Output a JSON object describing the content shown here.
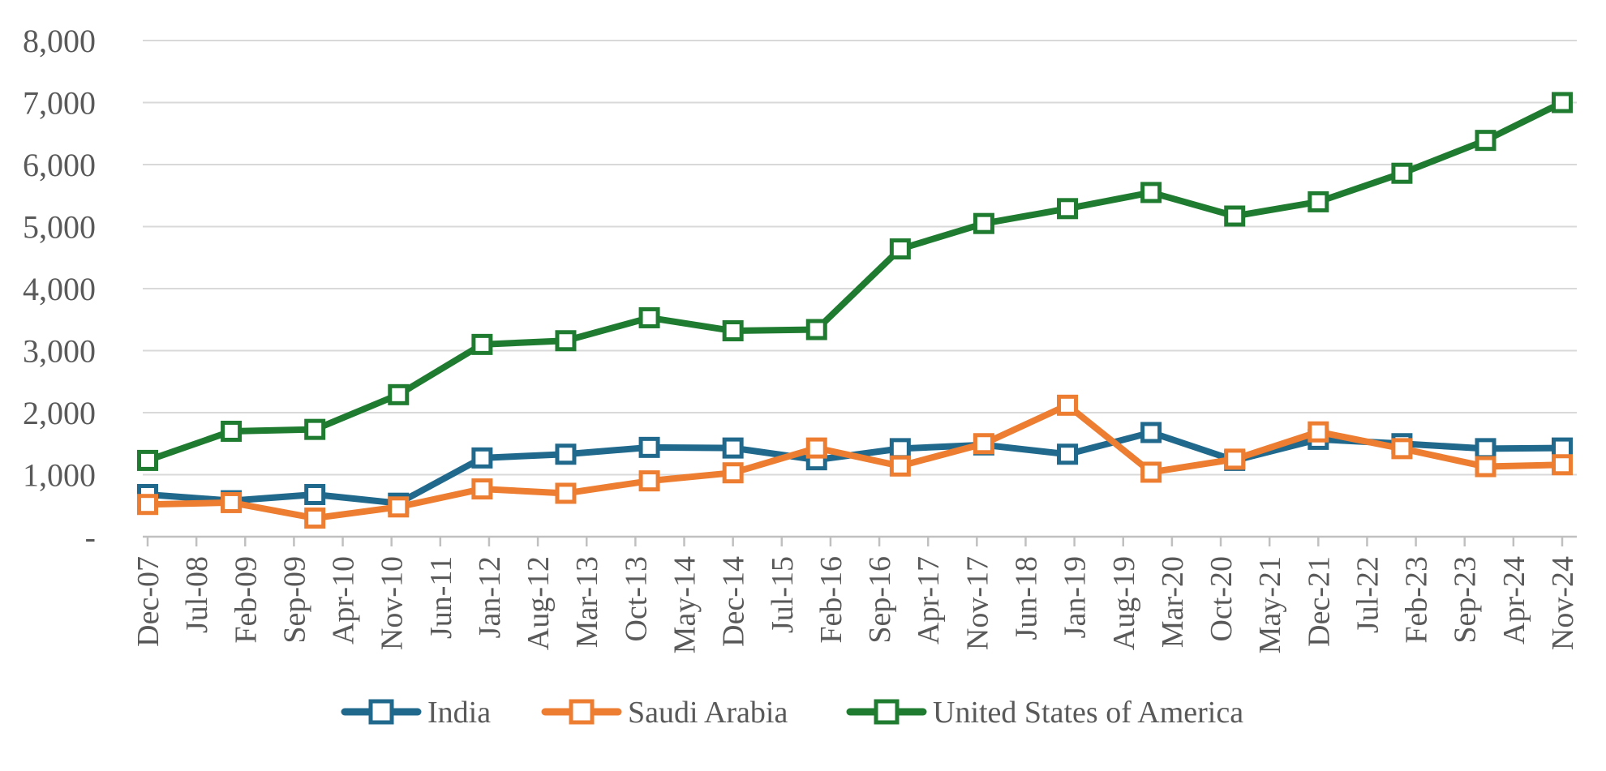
{
  "chart_data": {
    "type": "line",
    "title": "",
    "grid": true,
    "legend_position": "bottom",
    "y_axis": {
      "min": 0,
      "max": 8000,
      "step": 1000,
      "tick_labels": [
        "-",
        "1,000",
        "2,000",
        "3,000",
        "4,000",
        "5,000",
        "6,000",
        "7,000",
        "8,000"
      ]
    },
    "x_axis": {
      "tick_labels": [
        "Dec-07",
        "Jul-08",
        "Feb-09",
        "Sep-09",
        "Apr-10",
        "Nov-10",
        "Jun-11",
        "Jan-12",
        "Aug-12",
        "Mar-13",
        "Oct-13",
        "May-14",
        "Dec-14",
        "Jul-15",
        "Feb-16",
        "Sep-16",
        "Apr-17",
        "Nov-17",
        "Jun-18",
        "Jan-19",
        "Aug-19",
        "Mar-20",
        "Oct-20",
        "May-21",
        "Dec-21",
        "Jul-22",
        "Feb-23",
        "Sep-23",
        "Apr-24",
        "Nov-24"
      ],
      "label_interval_months": 7
    },
    "x": [
      "Dec-07",
      "Dec-08",
      "Dec-09",
      "Dec-10",
      "Dec-11",
      "Dec-12",
      "Dec-13",
      "Dec-14",
      "Dec-15",
      "Dec-16",
      "Dec-17",
      "Dec-18",
      "Dec-19",
      "Dec-20",
      "Dec-21",
      "Dec-22",
      "Dec-23",
      "Nov-24"
    ],
    "month_offsets": [
      0,
      12,
      24,
      36,
      48,
      60,
      72,
      84,
      96,
      108,
      120,
      132,
      144,
      156,
      168,
      180,
      192,
      203
    ],
    "series": [
      {
        "name": "India",
        "color": "#20698C",
        "values": [
          680,
          580,
          680,
          540,
          1270,
          1330,
          1440,
          1430,
          1240,
          1420,
          1480,
          1330,
          1680,
          1230,
          1570,
          1500,
          1420,
          1430
        ]
      },
      {
        "name": "Saudi Arabia",
        "color": "#ED7D31",
        "values": [
          520,
          550,
          300,
          480,
          770,
          700,
          900,
          1030,
          1430,
          1140,
          1500,
          2120,
          1040,
          1250,
          1690,
          1420,
          1130,
          1160
        ]
      },
      {
        "name": "United States of America",
        "color": "#1E7B30",
        "values": [
          1230,
          1700,
          1730,
          2290,
          3100,
          3160,
          3530,
          3320,
          3340,
          4640,
          5050,
          5290,
          5550,
          5170,
          5400,
          5860,
          6390,
          7000
        ]
      }
    ],
    "style": {
      "gridline_color": "#D9D9D9",
      "axis_line_color": "#C0C0C0",
      "label_color": "#595959",
      "marker_fill": "#FFFFFF"
    }
  }
}
